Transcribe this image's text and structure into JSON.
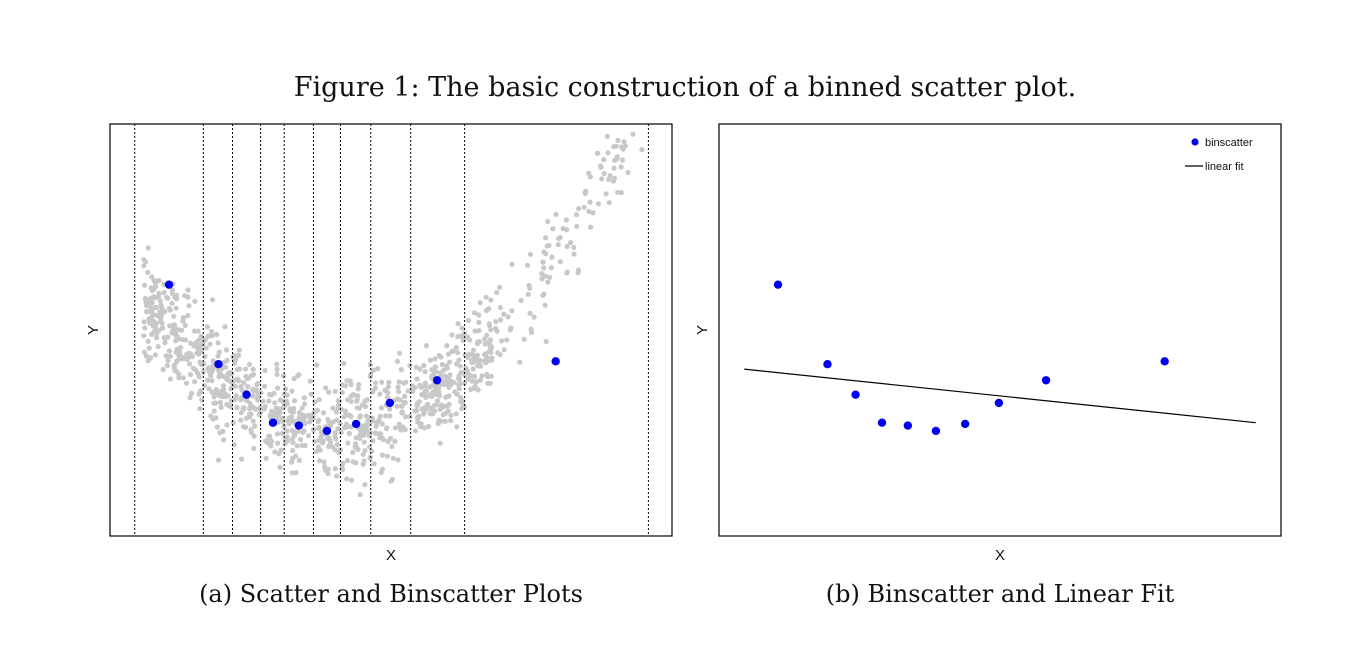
{
  "figure": {
    "title": "Figure 1: The basic construction of a binned scatter plot.",
    "colors": {
      "scatter": "#c8c8c8",
      "binscatter": "#0000ee",
      "line": "#000000",
      "frame": "#000000"
    }
  },
  "chart_data": [
    {
      "type": "scatter",
      "caption": "(a) Scatter and Binscatter Plots",
      "xlabel": "X",
      "ylabel": "Y",
      "xlim": [
        0,
        1
      ],
      "ylim": [
        0,
        1
      ],
      "grid": false,
      "bin_edges": [
        0.044,
        0.166,
        0.218,
        0.268,
        0.31,
        0.362,
        0.41,
        0.464,
        0.535,
        0.631,
        0.958
      ],
      "scatter_model": {
        "n": 1100,
        "seed": 7,
        "curve": "quadratic",
        "vertex_x": 0.4,
        "vertex_y": 0.265,
        "curvature": 2.65,
        "noise_sd": 0.06
      },
      "binscatter": {
        "x": [
          0.105,
          0.193,
          0.243,
          0.29,
          0.336,
          0.386,
          0.438,
          0.498,
          0.582,
          0.793
        ],
        "y": [
          0.61,
          0.417,
          0.343,
          0.275,
          0.268,
          0.255,
          0.272,
          0.323,
          0.378,
          0.424
        ]
      }
    },
    {
      "type": "scatter",
      "caption": "(b) Binscatter and Linear Fit",
      "xlabel": "X",
      "ylabel": "Y",
      "xlim": [
        0,
        1
      ],
      "ylim": [
        0,
        1
      ],
      "grid": false,
      "legend_position": "top-right",
      "legend": [
        "binscatter",
        "linear fit"
      ],
      "binscatter": {
        "x": [
          0.105,
          0.193,
          0.243,
          0.29,
          0.336,
          0.386,
          0.438,
          0.498,
          0.582,
          0.793
        ],
        "y": [
          0.61,
          0.417,
          0.343,
          0.275,
          0.268,
          0.255,
          0.272,
          0.323,
          0.378,
          0.424
        ]
      },
      "linear_fit": {
        "x": [
          0.045,
          0.955
        ],
        "y": [
          0.405,
          0.275
        ]
      }
    }
  ]
}
